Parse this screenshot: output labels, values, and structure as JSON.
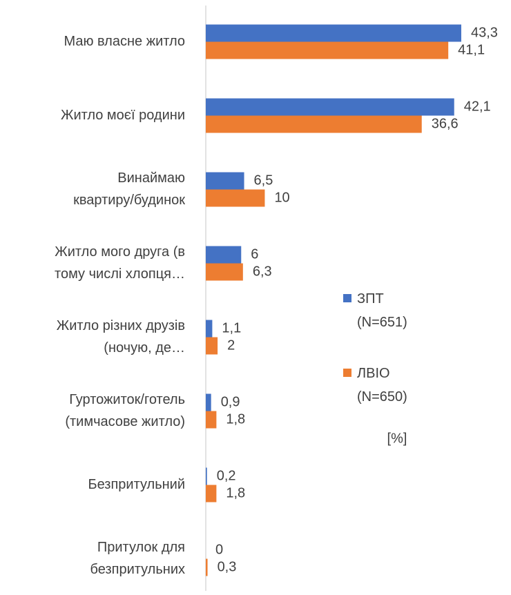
{
  "chart_data": {
    "type": "bar",
    "orientation": "horizontal",
    "categories": [
      [
        "Маю власне житло"
      ],
      [
        "Житло моєї родини"
      ],
      [
        "Винаймаю",
        "квартиру/будинок"
      ],
      [
        "Житло мого друга (в",
        "тому числі хлопця…"
      ],
      [
        "Житло різних друзів",
        "(ночую, де…"
      ],
      [
        "Гуртожиток/готель",
        "(тимчасове житло)"
      ],
      [
        "Безпритульний"
      ],
      [
        "Притулок для",
        "безпритульних"
      ]
    ],
    "series": [
      {
        "name": "ЗПТ (N=651)",
        "color": "#4472c4",
        "values": [
          43.3,
          42.1,
          6.5,
          6,
          1.1,
          0.9,
          0.2,
          0
        ],
        "value_labels": [
          "43,3",
          "42,1",
          "6,5",
          "6",
          "1,1",
          "0,9",
          "0,2",
          "0"
        ]
      },
      {
        "name": "ЛВІО (N=650)",
        "color": "#ed7d31",
        "values": [
          41.1,
          36.6,
          10,
          6.3,
          2,
          1.8,
          1.8,
          0.3
        ],
        "value_labels": [
          "41,1",
          "36,6",
          "10",
          "6,3",
          "2",
          "1,8",
          "1,8",
          "0,3"
        ]
      }
    ],
    "xlim": [
      0,
      45
    ],
    "unit_label": "[%]",
    "legend": "right"
  }
}
